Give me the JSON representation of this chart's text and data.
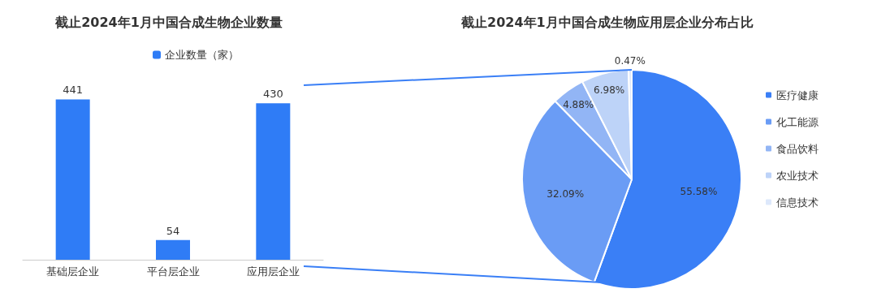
{
  "chart_data": [
    {
      "type": "bar",
      "title": "截止2024年1月中国合成生物企业数量",
      "categories": [
        "基础层企业",
        "平台层企业",
        "应用层企业"
      ],
      "series": [
        {
          "name": "企业数量（家）",
          "color": "#2f7cf6",
          "values": [
            441,
            54,
            430
          ]
        }
      ],
      "data_labels": true,
      "legend": "top",
      "tick_labels": "x"
    },
    {
      "type": "pie",
      "title": "截止2024年1月中国合成生物应用层企业分布占比",
      "categories": [
        "医疗健康",
        "化工能源",
        "食品饮料",
        "农业技术",
        "信息技术"
      ],
      "values": [
        55.58,
        32.09,
        4.88,
        6.98,
        0.47
      ],
      "colors": [
        "#3a7ff6",
        "#6a9cf5",
        "#92b5f5",
        "#bdd3f8",
        "#dde8fb"
      ],
      "value_labels": [
        "55.58%",
        "32.09%",
        "4.88%",
        "6.98%",
        "0.47%"
      ],
      "legend": "right"
    }
  ]
}
